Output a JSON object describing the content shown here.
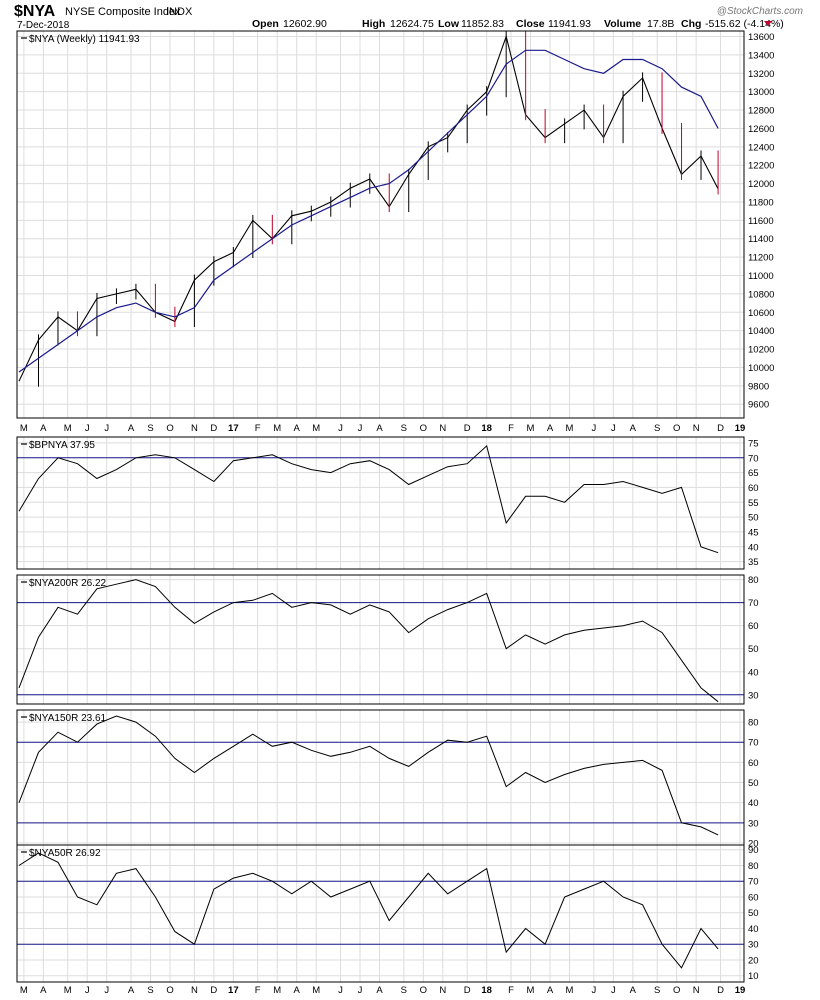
{
  "header": {
    "symbol": "$NYA",
    "name": "NYSE Composite Index",
    "exchange": "INDX",
    "date": "7-Dec-2018",
    "open_label": "Open",
    "open": "12602.90",
    "high_label": "High",
    "high": "12624.75",
    "low_label": "Low",
    "low": "11852.83",
    "close_label": "Close",
    "close": "11941.93",
    "volume_label": "Volume",
    "volume": "17.8B",
    "chg_label": "Chg",
    "chg": "-515.62 (-4.14%)",
    "watermark": "@StockCharts.com"
  },
  "colors": {
    "price_up": "#000000",
    "price_down": "#c0002a",
    "moving_average": "#1a1a8c",
    "reference_line": "#1a1a8c",
    "grid": "#dddddd",
    "indicator_line": "#000000",
    "change_arrow": "#c0002a"
  },
  "x_axis": {
    "ticks": [
      {
        "label": "M",
        "week": 1
      },
      {
        "label": "A",
        "week": 5
      },
      {
        "label": "M",
        "week": 10
      },
      {
        "label": "J",
        "week": 14
      },
      {
        "label": "J",
        "week": 18
      },
      {
        "label": "A",
        "week": 23
      },
      {
        "label": "S",
        "week": 27
      },
      {
        "label": "O",
        "week": 31
      },
      {
        "label": "N",
        "week": 36
      },
      {
        "label": "D",
        "week": 40
      },
      {
        "label": "17",
        "week": 44,
        "bold": true
      },
      {
        "label": "F",
        "week": 49
      },
      {
        "label": "M",
        "week": 53
      },
      {
        "label": "A",
        "week": 57
      },
      {
        "label": "M",
        "week": 61
      },
      {
        "label": "J",
        "week": 66
      },
      {
        "label": "J",
        "week": 70
      },
      {
        "label": "A",
        "week": 74
      },
      {
        "label": "S",
        "week": 79
      },
      {
        "label": "O",
        "week": 83
      },
      {
        "label": "N",
        "week": 87
      },
      {
        "label": "D",
        "week": 92
      },
      {
        "label": "18",
        "week": 96,
        "bold": true
      },
      {
        "label": "F",
        "week": 101
      },
      {
        "label": "M",
        "week": 105
      },
      {
        "label": "A",
        "week": 109
      },
      {
        "label": "M",
        "week": 113
      },
      {
        "label": "J",
        "week": 118
      },
      {
        "label": "J",
        "week": 122
      },
      {
        "label": "A",
        "week": 126
      },
      {
        "label": "S",
        "week": 131
      },
      {
        "label": "O",
        "week": 135
      },
      {
        "label": "N",
        "week": 139
      },
      {
        "label": "D",
        "week": 144
      },
      {
        "label": "19",
        "week": 148,
        "bold": true
      }
    ]
  },
  "chart_data": [
    {
      "type": "line",
      "legend": "$NYA (Weekly) 11941.93",
      "y_ticks": [
        9600,
        9800,
        10000,
        10200,
        10400,
        10600,
        10800,
        11000,
        11200,
        11400,
        11600,
        11800,
        12000,
        12200,
        12400,
        12600,
        12800,
        13000,
        13200,
        13400,
        13600
      ],
      "ylim": [
        9450,
        13660
      ],
      "grid": true,
      "reference_lines": [],
      "x": [
        0,
        4,
        8,
        12,
        16,
        20,
        24,
        28,
        32,
        36,
        40,
        44,
        48,
        52,
        56,
        60,
        64,
        68,
        72,
        76,
        80,
        84,
        88,
        92,
        96,
        100,
        104,
        108,
        112,
        116,
        120,
        124,
        128,
        132,
        136,
        140,
        143.5
      ],
      "series": [
        {
          "name": "$NYA (Weekly)",
          "style": "price",
          "values": [
            9850,
            10300,
            10550,
            10400,
            10750,
            10800,
            10850,
            10600,
            10500,
            10950,
            11150,
            11250,
            11600,
            11400,
            11650,
            11700,
            11800,
            11950,
            12050,
            11750,
            12100,
            12400,
            12500,
            12800,
            13000,
            13600,
            12750,
            12500,
            12650,
            12800,
            12500,
            12950,
            13150,
            12600,
            12100,
            12300,
            11942
          ]
        },
        {
          "name": "MA",
          "style": "ma",
          "values": [
            9950,
            10100,
            10250,
            10400,
            10550,
            10650,
            10700,
            10600,
            10550,
            10650,
            10950,
            11100,
            11250,
            11400,
            11550,
            11650,
            11750,
            11850,
            11950,
            12000,
            12150,
            12350,
            12550,
            12750,
            12950,
            13300,
            13450,
            13450,
            13350,
            13250,
            13200,
            13350,
            13350,
            13250,
            13050,
            12950,
            12600
          ]
        }
      ]
    },
    {
      "type": "line",
      "legend": "$BPNYA 37.95",
      "y_ticks": [
        35,
        40,
        45,
        50,
        55,
        60,
        65,
        70,
        75
      ],
      "ylim": [
        32.5,
        77
      ],
      "grid": true,
      "reference_lines": [
        70
      ],
      "x": [
        0,
        4,
        8,
        12,
        16,
        20,
        24,
        28,
        32,
        36,
        40,
        44,
        48,
        52,
        56,
        60,
        64,
        68,
        72,
        76,
        80,
        84,
        88,
        92,
        96,
        100,
        104,
        108,
        112,
        116,
        120,
        124,
        128,
        132,
        136,
        140,
        143.5
      ],
      "series": [
        {
          "name": "$BPNYA",
          "style": "indicator",
          "values": [
            52,
            63,
            70,
            68,
            63,
            66,
            70,
            71,
            70,
            66,
            62,
            69,
            70,
            71,
            68,
            66,
            65,
            68,
            69,
            66,
            61,
            64,
            67,
            68,
            74,
            48,
            57,
            57,
            55,
            61,
            61,
            62,
            60,
            58,
            60,
            40,
            38
          ]
        }
      ]
    },
    {
      "type": "line",
      "legend": "$NYA200R 26.22",
      "y_ticks": [
        30,
        40,
        50,
        60,
        70,
        80
      ],
      "ylim": [
        26,
        82
      ],
      "grid": true,
      "reference_lines": [
        30,
        70
      ],
      "x": [
        0,
        4,
        8,
        12,
        16,
        20,
        24,
        28,
        32,
        36,
        40,
        44,
        48,
        52,
        56,
        60,
        64,
        68,
        72,
        76,
        80,
        84,
        88,
        92,
        96,
        100,
        104,
        108,
        112,
        116,
        120,
        124,
        128,
        132,
        136,
        140,
        143.5
      ],
      "series": [
        {
          "name": "$NYA200R",
          "style": "indicator",
          "values": [
            33,
            55,
            68,
            65,
            76,
            78,
            80,
            77,
            68,
            61,
            66,
            70,
            71,
            74,
            68,
            70,
            69,
            65,
            69,
            66,
            57,
            63,
            67,
            70,
            74,
            50,
            56,
            52,
            56,
            58,
            59,
            60,
            62,
            57,
            45,
            33,
            27
          ]
        }
      ]
    },
    {
      "type": "line",
      "legend": "$NYA150R 23.61",
      "y_ticks": [
        20,
        30,
        40,
        50,
        60,
        70,
        80
      ],
      "ylim": [
        19,
        86
      ],
      "grid": true,
      "reference_lines": [
        30,
        70
      ],
      "x": [
        0,
        4,
        8,
        12,
        16,
        20,
        24,
        28,
        32,
        36,
        40,
        44,
        48,
        52,
        56,
        60,
        64,
        68,
        72,
        76,
        80,
        84,
        88,
        92,
        96,
        100,
        104,
        108,
        112,
        116,
        120,
        124,
        128,
        132,
        136,
        140,
        143.5
      ],
      "series": [
        {
          "name": "$NYA150R",
          "style": "indicator",
          "values": [
            40,
            65,
            75,
            70,
            79,
            83,
            80,
            73,
            62,
            55,
            62,
            68,
            74,
            68,
            70,
            66,
            63,
            65,
            68,
            62,
            58,
            65,
            71,
            70,
            73,
            48,
            55,
            50,
            54,
            57,
            59,
            60,
            61,
            56,
            30,
            28,
            24
          ]
        }
      ]
    },
    {
      "type": "line",
      "legend": "$NYA50R 26.92",
      "y_ticks": [
        10,
        20,
        30,
        40,
        50,
        60,
        70,
        80,
        90
      ],
      "ylim": [
        6,
        93
      ],
      "grid": true,
      "reference_lines": [
        30,
        70
      ],
      "x": [
        0,
        4,
        8,
        12,
        16,
        20,
        24,
        28,
        32,
        36,
        40,
        44,
        48,
        52,
        56,
        60,
        64,
        68,
        72,
        76,
        80,
        84,
        88,
        92,
        96,
        100,
        104,
        108,
        112,
        116,
        120,
        124,
        128,
        132,
        136,
        140,
        143.5
      ],
      "series": [
        {
          "name": "$NYA50R",
          "style": "indicator",
          "values": [
            80,
            88,
            82,
            60,
            55,
            75,
            78,
            60,
            38,
            30,
            65,
            72,
            75,
            70,
            62,
            70,
            60,
            65,
            70,
            45,
            60,
            75,
            62,
            70,
            78,
            25,
            40,
            30,
            60,
            65,
            70,
            60,
            55,
            30,
            15,
            40,
            27
          ]
        }
      ]
    }
  ]
}
